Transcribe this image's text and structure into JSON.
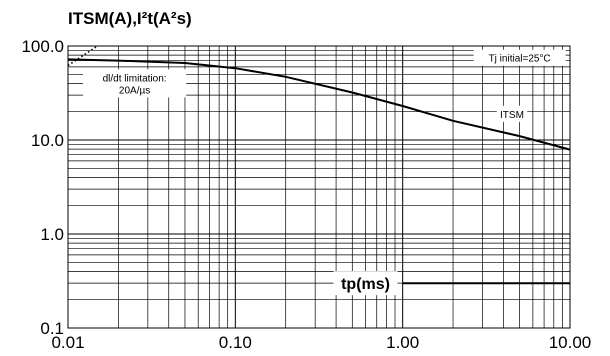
{
  "chart_data": {
    "type": "line",
    "title": "ITSM(A),I²t(A²s)",
    "xlabel": "tp(ms)",
    "ylabel": "",
    "x_scale": "log",
    "y_scale": "log",
    "xlim": [
      0.01,
      10
    ],
    "ylim": [
      0.1,
      100
    ],
    "grid": true,
    "x_ticks": [
      0.01,
      0.1,
      1,
      10
    ],
    "x_tick_labels": [
      "0.01",
      "0.10",
      "1.00",
      "10.00"
    ],
    "y_ticks": [
      0.1,
      1,
      10,
      100
    ],
    "y_tick_labels": [
      "0.1",
      "1.0",
      "10.0",
      "100.0"
    ],
    "series": [
      {
        "name": "ITSM",
        "style": "solid",
        "x": [
          0.01,
          0.02,
          0.05,
          0.1,
          0.2,
          0.5,
          1,
          2,
          5,
          10
        ],
        "values": [
          72,
          70,
          66,
          58,
          47,
          32,
          23,
          16,
          11,
          7.9
        ]
      },
      {
        "name": "dl/dt limitation: 20A/µs",
        "style": "dotted",
        "x": [
          0.01,
          0.015
        ],
        "values": [
          62,
          100
        ]
      },
      {
        "name": "I²t",
        "style": "solid",
        "x": [
          1.0,
          10
        ],
        "values": [
          0.3,
          0.3
        ]
      }
    ],
    "annotations": [
      {
        "id": "tj",
        "lines": [
          "Tj initial=25°C"
        ],
        "x": 5,
        "y": 75
      },
      {
        "id": "itsm",
        "lines": [
          "ITSM"
        ],
        "x": 4.5,
        "y": 19
      },
      {
        "id": "didt",
        "lines": [
          "dl/dt limitation:",
          "20A/µs"
        ],
        "x": 0.025,
        "y": 40
      }
    ]
  }
}
